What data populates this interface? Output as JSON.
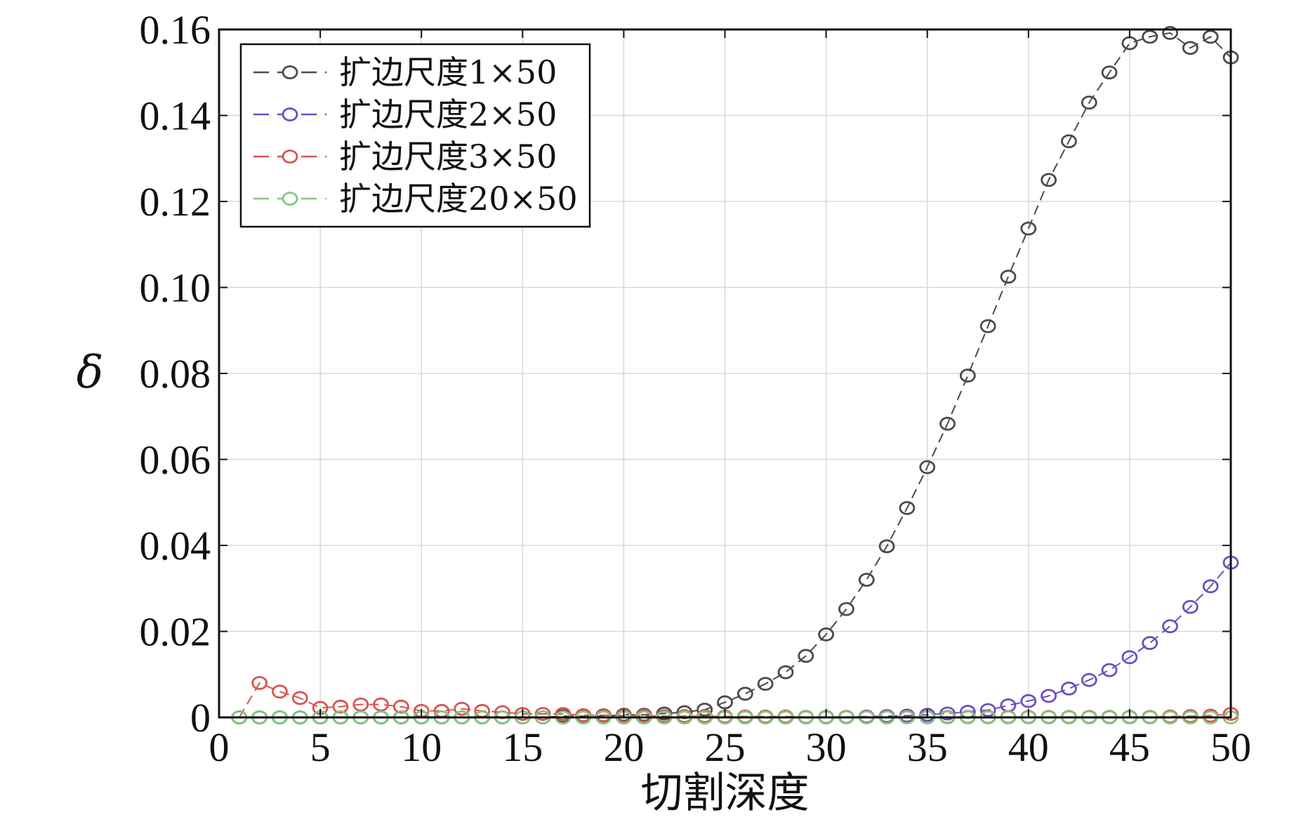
{
  "chart_data": {
    "type": "line",
    "title": "",
    "xlabel": "切割深度",
    "ylabel": "δ",
    "xlim": [
      0,
      50
    ],
    "ylim": [
      0,
      0.16
    ],
    "xticks": [
      "0",
      "5",
      "10",
      "15",
      "20",
      "25",
      "30",
      "35",
      "40",
      "45",
      "50"
    ],
    "yticks": [
      "0",
      "0.02",
      "0.04",
      "0.06",
      "0.08",
      "0.10",
      "0.12",
      "0.14",
      "0.16"
    ],
    "grid": true,
    "legend_position": "top-left",
    "x": [
      1,
      2,
      3,
      4,
      5,
      6,
      7,
      8,
      9,
      10,
      11,
      12,
      13,
      14,
      15,
      16,
      17,
      18,
      19,
      20,
      21,
      22,
      23,
      24,
      25,
      26,
      27,
      28,
      29,
      30,
      31,
      32,
      33,
      34,
      35,
      36,
      37,
      38,
      39,
      40,
      41,
      42,
      43,
      44,
      45,
      46,
      47,
      48,
      49,
      50
    ],
    "series": [
      {
        "name": "扩边尺度1×50",
        "color": "#4a4a4a",
        "values": [
          0,
          0,
          0,
          0,
          0,
          0,
          0,
          0,
          0,
          0,
          0,
          0,
          0,
          0,
          0,
          0,
          0.0003,
          0.0003,
          0.0003,
          0.0006,
          0.0006,
          0.0009,
          0.0012,
          0.0018,
          0.0035,
          0.0055,
          0.0078,
          0.0105,
          0.0143,
          0.0193,
          0.0252,
          0.032,
          0.0398,
          0.0487,
          0.0582,
          0.0683,
          0.0795,
          0.091,
          0.1025,
          0.1137,
          0.125,
          0.134,
          0.143,
          0.15,
          0.1568,
          0.1583,
          0.1592,
          0.1557,
          0.1583,
          0.1535
        ]
      },
      {
        "name": "扩边尺度2×50",
        "color": "#6a4fc0",
        "values": [
          0,
          0,
          0,
          0,
          0,
          0,
          0,
          0,
          0,
          0,
          0,
          0,
          0,
          0,
          0,
          0,
          0,
          0,
          0,
          0,
          0,
          0,
          0,
          0,
          0,
          0,
          0,
          0,
          0,
          0,
          0.0001,
          0.0002,
          0.0003,
          0.0004,
          0.0006,
          0.0009,
          0.0013,
          0.0017,
          0.0028,
          0.0038,
          0.005,
          0.0067,
          0.0087,
          0.011,
          0.014,
          0.0173,
          0.0212,
          0.0257,
          0.0305,
          0.036
        ]
      },
      {
        "name": "扩边尺度3×50",
        "color": "#d9534f",
        "values": [
          0,
          0.008,
          0.006,
          0.0045,
          0.0022,
          0.0025,
          0.003,
          0.003,
          0.0025,
          0.0015,
          0.0015,
          0.002,
          0.0015,
          0.0012,
          0.0008,
          0.0008,
          0.0008,
          0.0005,
          0.0005,
          0.0004,
          0.0004,
          0.0003,
          0.0003,
          0.0003,
          0.0002,
          0.0002,
          0.0002,
          0.0002,
          0.0001,
          0.0001,
          0.0001,
          0.0001,
          0.0001,
          0.0001,
          0.0001,
          0.0001,
          0.0001,
          0.0001,
          0.0001,
          0.0001,
          0.0001,
          0.0001,
          0.0001,
          0.0001,
          0.0001,
          0.0001,
          0.0002,
          0.0003,
          0.0004,
          0.0008
        ]
      },
      {
        "name": "扩边尺度20×50",
        "color": "#7fc97f",
        "values": [
          0,
          0,
          0,
          0,
          0,
          0,
          0,
          0,
          0,
          0,
          0,
          0,
          0,
          0,
          0,
          0,
          0,
          0,
          0,
          0,
          0,
          0,
          0,
          0,
          0,
          0,
          0,
          0,
          0,
          0,
          0,
          0,
          0,
          0,
          0,
          0,
          0,
          0,
          0,
          0,
          0,
          0,
          0,
          0,
          0,
          0,
          0,
          0,
          0,
          0
        ]
      }
    ]
  }
}
